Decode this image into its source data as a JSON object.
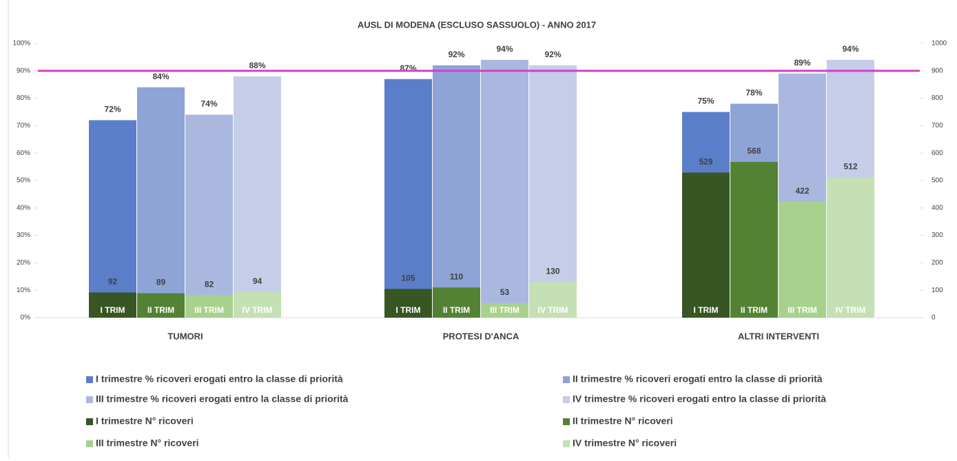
{
  "chart_data": {
    "type": "bar",
    "title": "AUSL DI MODENA (ESCLUSO SASSUOLO) - ANNO 2017",
    "categories": [
      "TUMORI",
      "PROTESI D'ANCA",
      "ALTRI INTERVENTI"
    ],
    "bar_labels": [
      "I TRIM",
      "II TRIM",
      "III TRIM",
      "IV TRIM"
    ],
    "series": [
      {
        "name": "I trimestre % ricoveri erogati entro la classe di priorità",
        "color": "#5b7ec9",
        "values": [
          72,
          87,
          75
        ],
        "value_labels": [
          "72%",
          "87%",
          "75%"
        ]
      },
      {
        "name": "II trimestre % ricoveri erogati entro la classe di priorità",
        "color": "#8ea3d6",
        "values": [
          84,
          92,
          78
        ],
        "value_labels": [
          "84%",
          "92%",
          "78%"
        ]
      },
      {
        "name": "III trimestre % ricoveri erogati entro la classe di priorità",
        "color": "#aab8df",
        "values": [
          74,
          94,
          89
        ],
        "value_labels": [
          "74%",
          "94%",
          "89%"
        ]
      },
      {
        "name": "IV trimestre % ricoveri erogati entro la classe di priorità",
        "color": "#c5cde8",
        "values": [
          88,
          92,
          94
        ],
        "value_labels": [
          "88%",
          "92%",
          "94%"
        ]
      },
      {
        "name": "I trimestre N° ricoveri",
        "color": "#375623",
        "axis": "y2",
        "values": [
          92,
          105,
          529
        ]
      },
      {
        "name": "II trimestre N° ricoveri",
        "color": "#548235",
        "axis": "y2",
        "values": [
          89,
          110,
          568
        ]
      },
      {
        "name": "III trimestre N° ricoveri",
        "color": "#a9d18e",
        "axis": "y2",
        "values": [
          82,
          53,
          422
        ]
      },
      {
        "name": "IV trimestre N° ricoveri",
        "color": "#c5e0b4",
        "axis": "y2",
        "values": [
          94,
          130,
          512
        ]
      }
    ],
    "ylim": [
      0,
      100
    ],
    "yticks": [
      {
        "value": 0,
        "label": "0%"
      },
      {
        "value": 10,
        "label": "10%"
      },
      {
        "value": 20,
        "label": "20%"
      },
      {
        "value": 30,
        "label": "30%"
      },
      {
        "value": 40,
        "label": "40%"
      },
      {
        "value": 50,
        "label": "50%"
      },
      {
        "value": 60,
        "label": "60%"
      },
      {
        "value": 70,
        "label": "70%"
      },
      {
        "value": 80,
        "label": "80%"
      },
      {
        "value": 90,
        "label": "90%"
      },
      {
        "value": 100,
        "label": "100%"
      }
    ],
    "y2lim": [
      0,
      1000
    ],
    "y2ticks": [
      0,
      100,
      200,
      300,
      400,
      500,
      600,
      700,
      800,
      900,
      1000
    ],
    "reference_line": {
      "value": 90,
      "color": "#d63fc6"
    },
    "grid": false
  }
}
